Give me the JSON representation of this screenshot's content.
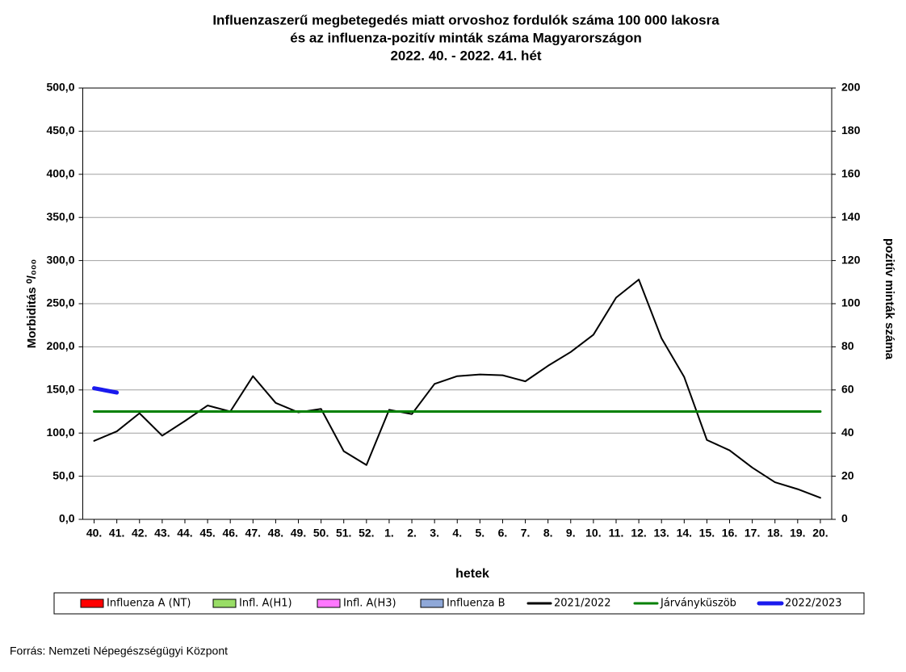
{
  "chart_data": {
    "type": "line",
    "title": [
      "Influenzaszerű megbetegedés miatt orvoshoz fordulók száma 100 000 lakosra",
      "és az influenza-pozitív minták száma Magyarországon",
      "2022. 40. - 2022. 41. hét"
    ],
    "x_label": "hetek",
    "y_label": "Morbiditás ⁰/₀₀₀",
    "y2_label": "pozitív minták száma",
    "source": "Forrás: Nemzeti Népegészségügyi Központ",
    "categories": [
      "40.",
      "41.",
      "42.",
      "43.",
      "44.",
      "45.",
      "46.",
      "47.",
      "48.",
      "49.",
      "50.",
      "51.",
      "52.",
      "1.",
      "2.",
      "3.",
      "4.",
      "5.",
      "6.",
      "7.",
      "8.",
      "9.",
      "10.",
      "11.",
      "12.",
      "13.",
      "14.",
      "15.",
      "16.",
      "17.",
      "18.",
      "19.",
      "20."
    ],
    "ylim": [
      0,
      500
    ],
    "yticks": [
      {
        "value": 0,
        "label": "0,0"
      },
      {
        "value": 50,
        "label": "50,0"
      },
      {
        "value": 100,
        "label": "100,0"
      },
      {
        "value": 150,
        "label": "150,0"
      },
      {
        "value": 200,
        "label": "200,0"
      },
      {
        "value": 250,
        "label": "250,0"
      },
      {
        "value": 300,
        "label": "300,0"
      },
      {
        "value": 350,
        "label": "350,0"
      },
      {
        "value": 400,
        "label": "400,0"
      },
      {
        "value": 450,
        "label": "450,0"
      },
      {
        "value": 500,
        "label": "500,0"
      }
    ],
    "y2lim": [
      0,
      200
    ],
    "y2ticks": [
      0,
      20,
      40,
      60,
      80,
      100,
      120,
      140,
      160,
      180,
      200
    ],
    "grid": true,
    "series": [
      {
        "name": "Influenza A (NT)",
        "type": "bar",
        "axis": "y2",
        "color": "#ff0000",
        "values": [
          null,
          null,
          null,
          null,
          null,
          null,
          null,
          null,
          null,
          null,
          null,
          null,
          null,
          null,
          null,
          null,
          null,
          null,
          null,
          null,
          null,
          null,
          null,
          null,
          null,
          null,
          null,
          null,
          null,
          null,
          null,
          null,
          null
        ]
      },
      {
        "name": "Infl. A(H1)",
        "type": "bar",
        "axis": "y2",
        "color": "#99dd66",
        "values": [
          null,
          null,
          null,
          null,
          null,
          null,
          null,
          null,
          null,
          null,
          null,
          null,
          null,
          null,
          null,
          null,
          null,
          null,
          null,
          null,
          null,
          null,
          null,
          null,
          null,
          null,
          null,
          null,
          null,
          null,
          null,
          null,
          null
        ]
      },
      {
        "name": "Infl. A(H3)",
        "type": "bar",
        "axis": "y2",
        "color": "#ff77ff",
        "values": [
          null,
          null,
          null,
          null,
          null,
          null,
          null,
          null,
          null,
          null,
          null,
          null,
          null,
          null,
          null,
          null,
          null,
          null,
          null,
          null,
          null,
          null,
          null,
          null,
          null,
          null,
          null,
          null,
          null,
          null,
          null,
          null,
          null
        ]
      },
      {
        "name": "Influenza B",
        "type": "bar",
        "axis": "y2",
        "color": "#8fa8d8",
        "values": [
          null,
          null,
          null,
          null,
          null,
          null,
          null,
          null,
          null,
          null,
          null,
          null,
          null,
          null,
          null,
          null,
          null,
          null,
          null,
          null,
          null,
          null,
          null,
          null,
          null,
          null,
          null,
          null,
          null,
          null,
          null,
          null,
          null
        ]
      },
      {
        "name": "2021/2022",
        "type": "line",
        "color": "#000000",
        "width": 2,
        "values": [
          91,
          102,
          123,
          97,
          114,
          132,
          125,
          166,
          135,
          124,
          128,
          79,
          63,
          127,
          122,
          157,
          166,
          168,
          167,
          160,
          178,
          194,
          214,
          257,
          278,
          210,
          165,
          92,
          80,
          60,
          43,
          35,
          25
        ]
      },
      {
        "name": "Járványküszöb",
        "type": "line",
        "color": "#008000",
        "width": 3,
        "values": [
          125,
          125,
          125,
          125,
          125,
          125,
          125,
          125,
          125,
          125,
          125,
          125,
          125,
          125,
          125,
          125,
          125,
          125,
          125,
          125,
          125,
          125,
          125,
          125,
          125,
          125,
          125,
          125,
          125,
          125,
          125,
          125,
          125
        ]
      },
      {
        "name": "2022/2023",
        "type": "line",
        "color": "#1a1aee",
        "width": 5,
        "values": [
          152,
          147,
          null,
          null,
          null,
          null,
          null,
          null,
          null,
          null,
          null,
          null,
          null,
          null,
          null,
          null,
          null,
          null,
          null,
          null,
          null,
          null,
          null,
          null,
          null,
          null,
          null,
          null,
          null,
          null,
          null,
          null,
          null
        ]
      }
    ]
  }
}
